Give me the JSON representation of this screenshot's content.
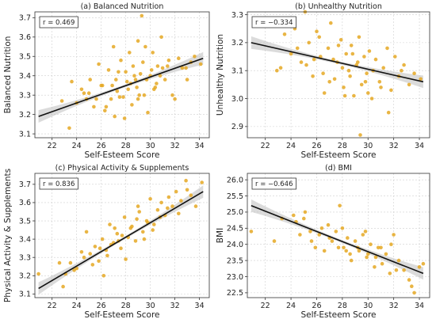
{
  "chart_data": [
    {
      "type": "scatter",
      "title": "(a) Balanced Nutrition",
      "xlabel": "Self-Esteem Score",
      "ylabel": "Balanced Nutrition",
      "xlim": [
        20.6,
        34.8
      ],
      "ylim": [
        3.08,
        3.73
      ],
      "xticks": [
        22,
        24,
        26,
        28,
        30,
        32,
        34
      ],
      "yticks": [
        3.1,
        3.2,
        3.3,
        3.4,
        3.5,
        3.6,
        3.7
      ],
      "annotation": "r = 0.469",
      "grid": true,
      "point_color": "#E5A823",
      "fit_line": {
        "x": [
          20.9,
          34.3
        ],
        "y": [
          3.19,
          3.49
        ]
      },
      "x": [
        22.8,
        23.6,
        24.0,
        24.4,
        24.8,
        25.1,
        25.4,
        25.8,
        26.0,
        26.3,
        26.6,
        26.8,
        27.0,
        27.2,
        27.5,
        27.6,
        27.9,
        28.0,
        28.2,
        28.3,
        28.5,
        28.6,
        28.8,
        29.0,
        29.1,
        29.3,
        29.4,
        29.6,
        29.8,
        30.0,
        30.2,
        30.4,
        30.6,
        30.9,
        31.2,
        31.5,
        31.8,
        32.0,
        32.3,
        32.6,
        33.0,
        33.3,
        33.6,
        34.1,
        25.0,
        26.4,
        27.3,
        27.8,
        28.4,
        28.9,
        29.2,
        29.7,
        30.1,
        30.5,
        31.0,
        26.9,
        28.1,
        29.5,
        30.8,
        31.4,
        27.1,
        28.7,
        25.6,
        24.6,
        23.4,
        29.0,
        27.4,
        26.1,
        30.3,
        32.9
      ],
      "y": [
        3.27,
        3.37,
        3.26,
        3.33,
        3.28,
        3.38,
        3.24,
        3.46,
        3.35,
        3.22,
        3.43,
        3.28,
        3.55,
        3.38,
        3.29,
        3.48,
        3.18,
        3.42,
        3.33,
        3.52,
        3.25,
        3.45,
        3.38,
        3.58,
        3.3,
        3.71,
        3.47,
        3.55,
        3.21,
        3.4,
        3.52,
        3.34,
        3.45,
        3.6,
        3.38,
        3.48,
        3.3,
        3.28,
        3.49,
        3.44,
        3.38,
        3.47,
        3.5,
        3.46,
        3.31,
        3.24,
        3.32,
        3.29,
        3.36,
        3.34,
        3.41,
        3.38,
        3.43,
        3.36,
        3.44,
        3.35,
        3.37,
        3.3,
        3.4,
        3.45,
        3.19,
        3.4,
        3.28,
        3.31,
        3.13,
        3.28,
        3.42,
        3.35,
        3.33,
        3.44
      ]
    },
    {
      "type": "scatter",
      "title": "(b) Unhealthy Nutrition",
      "xlabel": "Self-Esteem Score",
      "ylabel": "Unhealthy Nutrition",
      "xlim": [
        20.6,
        34.8
      ],
      "ylim": [
        2.86,
        3.31
      ],
      "xticks": [
        22,
        24,
        26,
        28,
        30,
        32,
        34
      ],
      "yticks": [
        2.9,
        3.0,
        3.1,
        3.2,
        3.3
      ],
      "annotation": "r = −0.334",
      "grid": true,
      "point_color": "#E5A823",
      "fit_line": {
        "x": [
          20.9,
          34.3
        ],
        "y": [
          3.2,
          3.06
        ]
      },
      "x": [
        22.9,
        23.5,
        24.0,
        24.3,
        24.8,
        25.1,
        25.4,
        25.7,
        26.0,
        26.3,
        26.6,
        26.9,
        27.1,
        27.4,
        27.6,
        27.9,
        28.1,
        28.3,
        28.5,
        28.7,
        28.9,
        29.1,
        29.3,
        29.5,
        29.7,
        29.9,
        30.1,
        30.3,
        30.6,
        30.9,
        31.2,
        31.5,
        31.8,
        32.1,
        32.4,
        32.8,
        33.2,
        33.6,
        34.1,
        25.2,
        26.5,
        27.3,
        28.0,
        28.6,
        29.2,
        29.8,
        30.4,
        31.0,
        27.7,
        26.2,
        24.5,
        29.4,
        28.2,
        30.0,
        31.6,
        23.2,
        27.0,
        28.8,
        32.6,
        25.8
      ],
      "y": [
        3.1,
        3.23,
        3.16,
        3.25,
        3.13,
        3.31,
        3.2,
        3.08,
        3.24,
        3.15,
        3.02,
        3.18,
        3.27,
        3.07,
        3.13,
        3.21,
        3.04,
        3.16,
        3.1,
        3.19,
        3.01,
        3.12,
        3.22,
        3.05,
        3.15,
        3.09,
        3.17,
        3.0,
        3.14,
        3.06,
        3.11,
        3.18,
        3.03,
        3.15,
        3.08,
        3.12,
        3.05,
        3.09,
        3.07,
        3.12,
        3.09,
        3.14,
        3.11,
        3.08,
        3.13,
        3.06,
        3.1,
        3.04,
        3.19,
        3.22,
        3.18,
        2.87,
        3.01,
        3.02,
        2.95,
        3.11,
        3.06,
        3.16,
        3.1,
        3.14
      ]
    },
    {
      "type": "scatter",
      "title": "(c) Physical Activity & Supplements",
      "xlabel": "Self-Esteem Score",
      "ylabel": "Physical Activity & Supplements",
      "xlim": [
        20.6,
        34.8
      ],
      "ylim": [
        3.08,
        3.76
      ],
      "xticks": [
        22,
        24,
        26,
        28,
        30,
        32,
        34
      ],
      "yticks": [
        3.1,
        3.2,
        3.3,
        3.4,
        3.5,
        3.6,
        3.7
      ],
      "annotation": "r = 0.836",
      "grid": true,
      "point_color": "#E5A823",
      "fit_line": {
        "x": [
          20.9,
          34.3
        ],
        "y": [
          3.13,
          3.66
        ]
      },
      "x": [
        20.9,
        22.6,
        23.1,
        23.5,
        24.0,
        24.4,
        24.8,
        25.1,
        25.5,
        25.8,
        26.1,
        26.4,
        26.7,
        27.0,
        27.3,
        27.6,
        27.9,
        28.2,
        28.5,
        28.8,
        29.1,
        29.4,
        29.7,
        30.0,
        30.3,
        30.6,
        30.9,
        31.2,
        31.5,
        31.8,
        32.1,
        32.5,
        32.9,
        33.3,
        33.7,
        34.2,
        26.2,
        27.1,
        28.0,
        28.9,
        29.5,
        30.2,
        26.8,
        27.7,
        29.0,
        24.6,
        25.9,
        28.4,
        30.8,
        32.3,
        33.0,
        27.4,
        29.8,
        31.4,
        23.8,
        26.5,
        25.3,
        22.9
      ],
      "y": [
        3.21,
        3.27,
        3.21,
        3.27,
        3.24,
        3.33,
        3.44,
        3.32,
        3.36,
        3.28,
        3.4,
        3.34,
        3.48,
        3.38,
        3.43,
        3.35,
        3.52,
        3.41,
        3.47,
        3.39,
        3.55,
        3.44,
        3.5,
        3.62,
        3.48,
        3.56,
        3.6,
        3.53,
        3.63,
        3.58,
        3.66,
        3.61,
        3.72,
        3.64,
        3.58,
        3.71,
        3.2,
        3.46,
        3.29,
        3.51,
        3.4,
        3.45,
        3.37,
        3.42,
        3.58,
        3.3,
        3.35,
        3.46,
        3.52,
        3.54,
        3.67,
        3.39,
        3.49,
        3.57,
        3.23,
        3.31,
        3.26,
        3.14
      ]
    },
    {
      "type": "scatter",
      "title": "(d) BMI",
      "xlabel": "Self-Esteem Score",
      "ylabel": "BMI",
      "xlim": [
        20.6,
        34.8
      ],
      "ylim": [
        22.35,
        26.2
      ],
      "xticks": [
        22,
        24,
        26,
        28,
        30,
        32,
        34
      ],
      "yticks": [
        22.5,
        23.0,
        23.5,
        24.0,
        24.5,
        25.0,
        25.5,
        26.0
      ],
      "annotation": "r = −0.646",
      "grid": true,
      "point_color": "#E5A823",
      "fit_line": {
        "x": [
          20.9,
          34.3
        ],
        "y": [
          25.2,
          23.1
        ]
      },
      "x": [
        20.9,
        22.7,
        23.3,
        23.8,
        24.2,
        24.7,
        25.1,
        25.5,
        25.9,
        26.2,
        26.6,
        26.9,
        27.2,
        27.5,
        27.8,
        28.1,
        28.4,
        28.7,
        29.0,
        29.3,
        29.6,
        29.9,
        30.2,
        30.5,
        30.8,
        31.1,
        31.4,
        31.7,
        32.0,
        32.4,
        32.8,
        33.2,
        33.6,
        34.0,
        34.3,
        25.0,
        26.4,
        27.0,
        28.0,
        28.6,
        29.2,
        30.0,
        31.0,
        32.2,
        33.4,
        25.6,
        27.7,
        29.8,
        31.8,
        24.4,
        28.3,
        30.6
      ],
      "y": [
        24.4,
        24.1,
        24.8,
        26.0,
        24.9,
        24.3,
        25.0,
        24.4,
        23.9,
        24.3,
        23.8,
        24.6,
        24.1,
        24.4,
        25.2,
        23.9,
        24.2,
        23.5,
        24.1,
        23.8,
        24.3,
        23.6,
        24.0,
        23.3,
        23.9,
        23.4,
        23.7,
        23.1,
        24.3,
        23.5,
        23.2,
        22.9,
        22.5,
        23.3,
        23.4,
        24.8,
        24.5,
        24.2,
        24.5,
        23.7,
        23.9,
        23.7,
        23.9,
        23.2,
        22.7,
        24.1,
        23.9,
        24.4,
        24.0,
        24.7,
        23.8,
        23.6
      ]
    }
  ]
}
